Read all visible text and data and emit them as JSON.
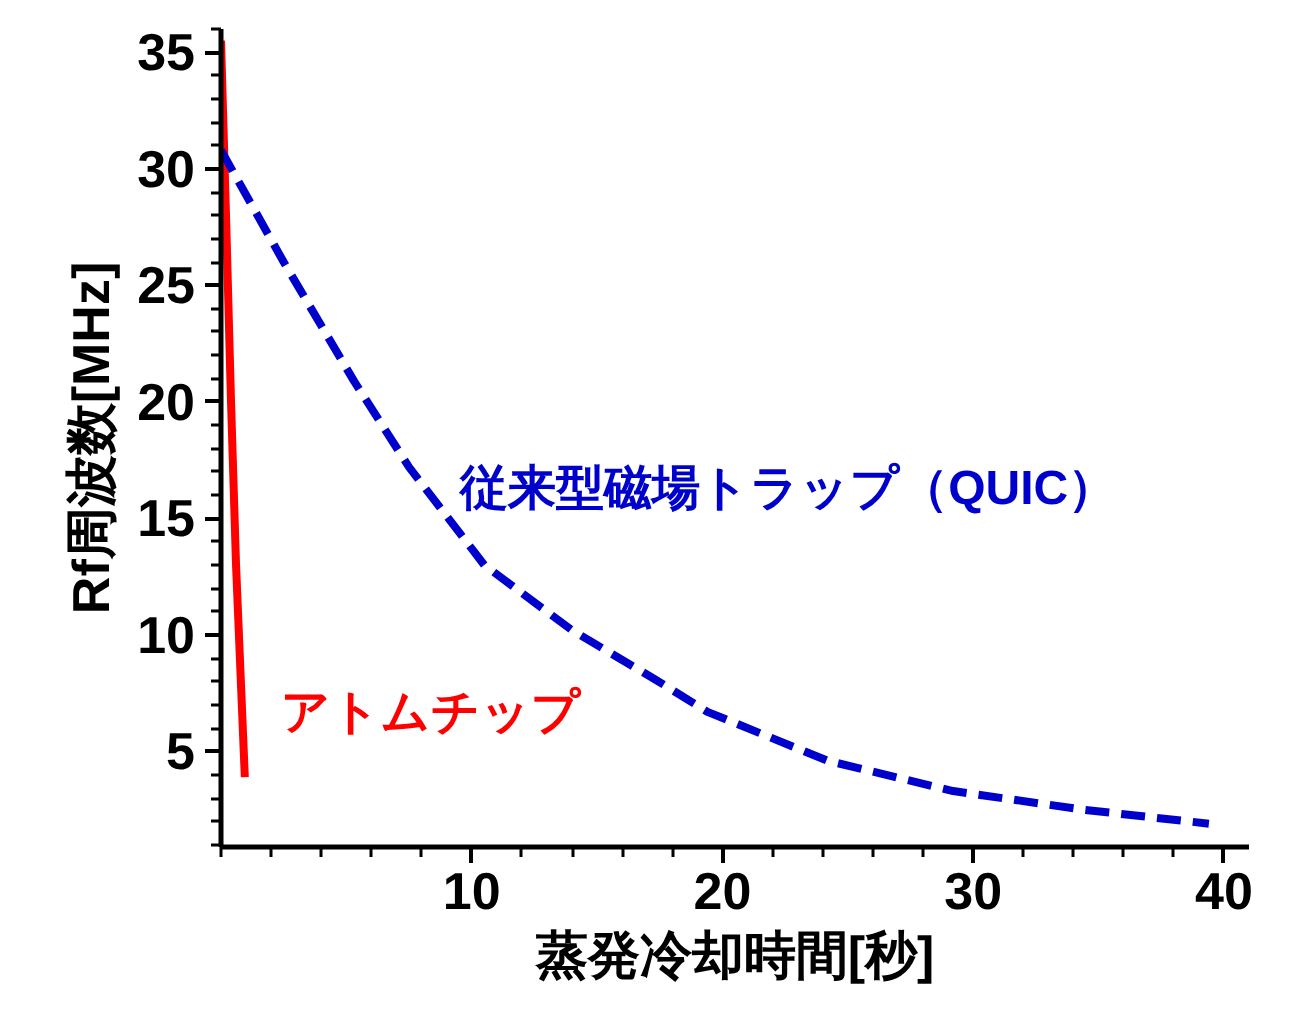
{
  "chart_data": {
    "type": "line",
    "xlabel": "蒸発冷却時間[秒]",
    "ylabel": "Rf周波数[MHz]",
    "xlim": [
      0,
      41
    ],
    "ylim": [
      0.9,
      36
    ],
    "xticks": [
      10,
      20,
      30,
      40
    ],
    "yticks": [
      5,
      10,
      15,
      20,
      25,
      30,
      35
    ],
    "grid": false,
    "series": [
      {
        "name": "アトムチップ",
        "color": "#ff0000",
        "line_style": "solid",
        "x": [
          0,
          0.2,
          0.4,
          0.6,
          0.95
        ],
        "values": [
          35.5,
          28,
          20,
          13,
          3.9
        ]
      },
      {
        "name": "従来型磁場トラップ（QUIC）",
        "color": "#0000cc",
        "line_style": "dashed",
        "x": [
          0,
          2.5,
          5.3,
          7.5,
          10.5,
          14,
          17.3,
          19.4,
          24.2,
          29.2,
          34.4,
          39.4
        ],
        "values": [
          30.8,
          26,
          20.9,
          17.2,
          13.0,
          10.2,
          8.1,
          6.7,
          4.6,
          3.3,
          2.5,
          1.9
        ]
      }
    ]
  }
}
